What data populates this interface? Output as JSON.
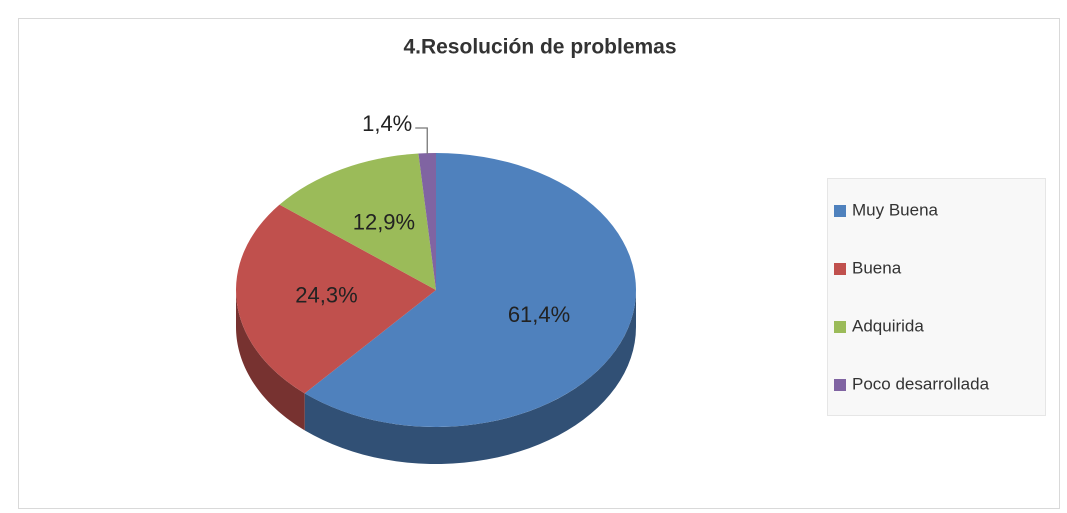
{
  "chart_data": {
    "type": "pie",
    "title": "4.Resolución de problemas",
    "categories": [
      "Muy Buena",
      "Buena",
      "Adquirida",
      "Poco desarrollada"
    ],
    "values": [
      61.4,
      24.3,
      12.9,
      1.4
    ],
    "value_labels": [
      "61,4%",
      "24,3%",
      "12,9%",
      "1,4%"
    ],
    "colors": [
      "#4f81bd",
      "#c0504d",
      "#9bbb59",
      "#8064a2"
    ],
    "legend": "right"
  }
}
